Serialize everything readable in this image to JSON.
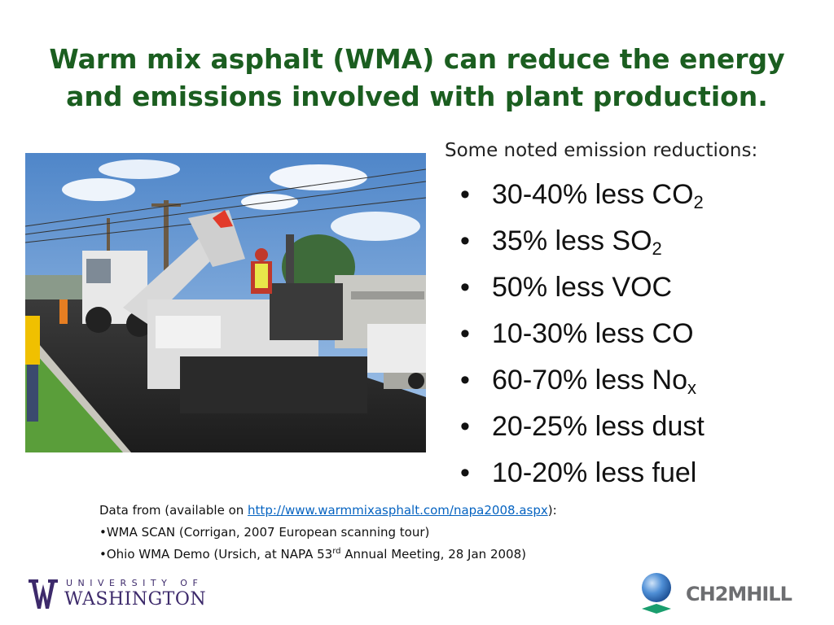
{
  "slide": {
    "title_line1": "Warm mix asphalt (WMA) can reduce the energy",
    "title_line2": "and emissions involved with plant production."
  },
  "reductions": {
    "intro": "Some noted emission reductions:",
    "bullet": "•",
    "items": [
      {
        "text": "30-40% less CO",
        "sub": "2"
      },
      {
        "text": "35% less SO",
        "sub": "2"
      },
      {
        "text": "50% less VOC",
        "sub": ""
      },
      {
        "text": "10-30% less CO",
        "sub": ""
      },
      {
        "text": "60-70% less No",
        "sub": "x"
      },
      {
        "text": "20-25% less dust",
        "sub": ""
      },
      {
        "text": "10-20% less fuel",
        "sub": ""
      }
    ]
  },
  "sources": {
    "line1_prefix": "Data from (available on ",
    "link_text": "http://www.warmmixasphalt.com/napa2008.aspx",
    "line1_suffix": "):",
    "line2": "•WMA SCAN (Corrigan, 2007 European scanning tour)",
    "line3_prefix": "•Ohio WMA Demo (Ursich, at NAPA 53",
    "line3_sup": "rd",
    "line3_suffix": " Annual Meeting, 28 Jan 2008)"
  },
  "logos": {
    "uw_top": "UNIVERSITY OF",
    "uw_bottom": "WASHINGTON",
    "uw_color": "#3d2a6b",
    "ch2m": "CH2MHILL",
    "ch2m_color": "#6d6e71",
    "ch2m_globe_color": "#2f6fb6",
    "ch2m_base_color": "#1a9e6e"
  },
  "colors": {
    "title": "#1b5e20",
    "link": "#0563c1"
  },
  "photo": {
    "icon": "asphalt-paving-photo"
  }
}
